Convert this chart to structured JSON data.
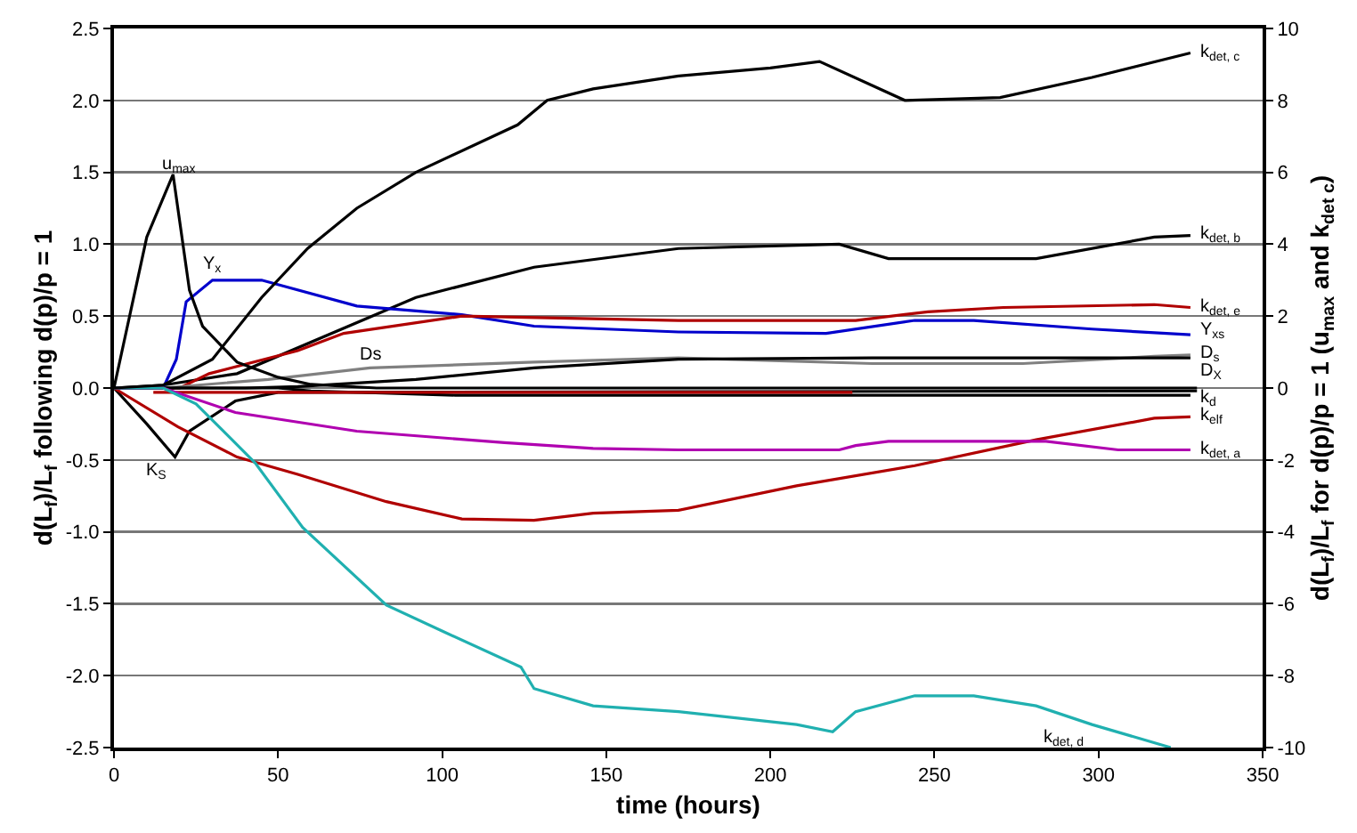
{
  "chart_data": {
    "type": "line",
    "xlabel": "time (hours)",
    "ylabel": "d(L$_{f}$)/L$_{f}$ following d(p)/p = 1",
    "y2label": "d(L$_{f}$)/L$_{f}$ for d(p)/p = 1 (u$_{max}$ and k$_{det c}$)",
    "xlim": [
      0,
      350
    ],
    "xticks": [
      0,
      50,
      100,
      150,
      200,
      250,
      300,
      350
    ],
    "ylim": [
      -2.5,
      2.5
    ],
    "yticks": [
      {
        "value": -2.5,
        "label": "-2.5"
      },
      {
        "value": -2,
        "label": "-2.0"
      },
      {
        "value": -1.5,
        "label": "-1.5"
      },
      {
        "value": -1,
        "label": "-1.0"
      },
      {
        "value": -0.5,
        "label": "-0.5"
      },
      {
        "value": 0,
        "label": "0.0"
      },
      {
        "value": 0.5,
        "label": "0.5"
      },
      {
        "value": 1,
        "label": "1.0"
      },
      {
        "value": 1.5,
        "label": "1.5"
      },
      {
        "value": 2,
        "label": "2.0"
      },
      {
        "value": 2.5,
        "label": "2.5"
      }
    ],
    "y2lim": [
      -10,
      10
    ],
    "y2ticks": [
      -10,
      -8,
      -6,
      -4,
      -2,
      0,
      2,
      4,
      6,
      8,
      10
    ],
    "grid": "y",
    "marker": "none",
    "line_style": "solid",
    "series": [
      {
        "color": "#000000",
        "axis": "y2",
        "x": [
          0,
          10,
          18,
          23,
          27,
          37.5,
          50,
          60,
          80,
          330
        ],
        "values": [
          0,
          4.2,
          5.94,
          2.72,
          1.72,
          0.72,
          0.3,
          0.1,
          0,
          0
        ]
      },
      {
        "color": "#000000",
        "x": [
          0,
          10,
          18.6,
          23,
          37,
          50,
          330
        ],
        "values": [
          0,
          -0.25,
          -0.48,
          -0.3,
          -0.09,
          -0.03,
          -0.02
        ]
      },
      {
        "color": "#000000",
        "axis": "y2",
        "x": [
          0,
          15,
          30,
          45,
          59,
          74,
          92,
          123,
          132,
          146,
          172,
          200,
          215,
          241,
          270,
          298,
          328
        ],
        "values": [
          0,
          0.08,
          0.8,
          2.52,
          3.88,
          5.0,
          6.0,
          7.32,
          8.0,
          8.32,
          8.68,
          8.9,
          9.08,
          8.0,
          8.08,
          8.64,
          9.32
        ]
      },
      {
        "color": "#000000",
        "x": [
          0,
          15,
          37.5,
          92,
          128,
          172,
          221,
          236,
          281,
          317,
          328
        ],
        "values": [
          0,
          0.02,
          0.1,
          0.63,
          0.84,
          0.97,
          1.0,
          0.9,
          0.9,
          1.05,
          1.06
        ]
      },
      {
        "color": "#0000cc",
        "x": [
          0,
          15,
          19,
          22,
          30,
          45,
          74,
          106,
          128,
          172,
          217,
          244,
          262,
          298,
          328
        ],
        "values": [
          0,
          0,
          0.2,
          0.6,
          0.75,
          0.75,
          0.57,
          0.51,
          0.43,
          0.39,
          0.38,
          0.47,
          0.47,
          0.41,
          0.37
        ]
      },
      {
        "color": "#b00000",
        "x": [
          0,
          20,
          29,
          56,
          70,
          106,
          172,
          226,
          248,
          271,
          317,
          328
        ],
        "values": [
          0,
          0,
          0.1,
          0.26,
          0.38,
          0.5,
          0.47,
          0.47,
          0.53,
          0.56,
          0.58,
          0.56
        ]
      },
      {
        "color": "#808080",
        "x": [
          0,
          15,
          47,
          78,
          128,
          172,
          231,
          277,
          317,
          328
        ],
        "values": [
          0,
          0,
          0.06,
          0.14,
          0.18,
          0.21,
          0.17,
          0.17,
          0.22,
          0.23
        ]
      },
      {
        "color": "#000000",
        "x": [
          0,
          40,
          56,
          92,
          128,
          172,
          231,
          277,
          328
        ],
        "values": [
          0,
          0,
          0.01,
          0.06,
          0.14,
          0.2,
          0.21,
          0.21,
          0.21
        ]
      },
      {
        "color": "#000000",
        "x": [
          0,
          50,
          60,
          104,
          328
        ],
        "values": [
          0,
          0,
          -0.02,
          -0.05,
          -0.05
        ]
      },
      {
        "color": "#b00000",
        "x": [
          12,
          225
        ],
        "values": [
          -0.03,
          -0.03
        ]
      },
      {
        "color": "#b00000",
        "x": [
          0,
          19.5,
          37.5,
          56,
          83,
          106,
          128,
          146,
          172,
          208,
          244,
          281,
          317,
          328
        ],
        "values": [
          0,
          -0.27,
          -0.48,
          -0.6,
          -0.79,
          -0.91,
          -0.92,
          -0.87,
          -0.85,
          -0.68,
          -0.54,
          -0.36,
          -0.21,
          -0.2
        ]
      },
      {
        "color": "#b000b0",
        "x": [
          0,
          15,
          37,
          74,
          119,
          146,
          172,
          221,
          226,
          236,
          284,
          306,
          328
        ],
        "values": [
          0,
          0,
          -0.17,
          -0.3,
          -0.38,
          -0.42,
          -0.43,
          -0.43,
          -0.4,
          -0.37,
          -0.37,
          -0.43,
          -0.43
        ]
      },
      {
        "color": "#20b0b0",
        "x": [
          0,
          15,
          25,
          43,
          57.5,
          83,
          101,
          124,
          128,
          146,
          172,
          208,
          219,
          226,
          244,
          262,
          281,
          298,
          322
        ],
        "values": [
          0,
          0,
          -0.11,
          -0.52,
          -0.97,
          -1.51,
          -1.7,
          -1.94,
          -2.09,
          -2.21,
          -2.25,
          -2.34,
          -2.39,
          -2.25,
          -2.14,
          -2.14,
          -2.21,
          -2.34,
          -2.5
        ]
      }
    ],
    "annotations": [
      {
        "text": "u$_{max}$",
        "x": 20,
        "y": 1.45
      },
      {
        "text": "K$_{S}$",
        "x": 18.6,
        "y": -0.48
      },
      {
        "text": "k$_{det, c}$",
        "x": 328,
        "y": 2.33
      },
      {
        "text": "k$_{det, b}$",
        "x": 328,
        "y": 1.06
      },
      {
        "text": "k$_{det, e}$",
        "x": 328,
        "y": 0.56
      },
      {
        "text": "Y$_{xs}$",
        "x": 328,
        "y": 0.4
      },
      {
        "text": "D$_{s}$",
        "x": 328,
        "y": 0.23
      },
      {
        "text": "D$_{X}$",
        "x": 328,
        "y": 0.21
      },
      {
        "text": "k$_{d}$",
        "x": 328,
        "y": -0.07
      },
      {
        "text": "k$_{elf}$",
        "x": 328,
        "y": -0.2
      },
      {
        "text": "k$_{det, a}$",
        "x": 328,
        "y": -0.43
      },
      {
        "text": "k$_{det, d}$",
        "x": 298,
        "y": -2.34
      },
      {
        "text": "Y$_{x}$",
        "x": 30,
        "y": 0.75
      },
      {
        "text": "Ds",
        "x": 78,
        "y": 0.14
      }
    ]
  }
}
